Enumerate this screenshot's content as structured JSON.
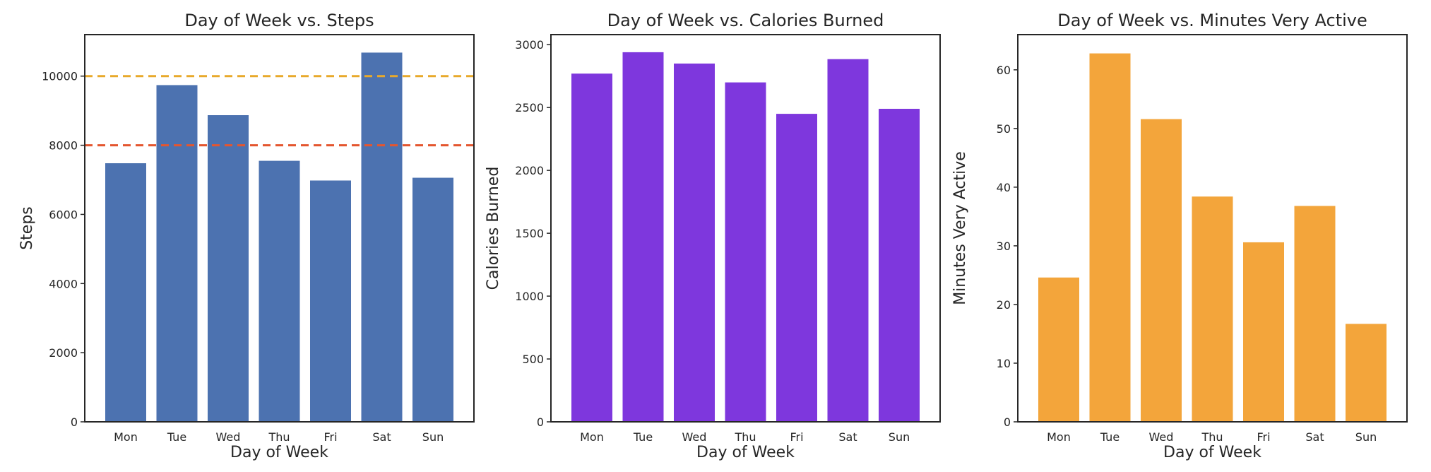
{
  "chart_data": [
    {
      "type": "bar",
      "title": "Day of Week vs. Steps",
      "xlabel": "Day of Week",
      "ylabel": "Steps",
      "categories": [
        "Mon",
        "Tue",
        "Wed",
        "Thu",
        "Fri",
        "Sat",
        "Sun"
      ],
      "values": [
        7480,
        9740,
        8870,
        7550,
        6980,
        10680,
        7060
      ],
      "ylim": [
        0,
        11200
      ],
      "yticks": [
        0,
        2000,
        4000,
        6000,
        8000,
        10000
      ],
      "color": "#4c72b0",
      "reference_lines": [
        {
          "y": 10000,
          "color": "#e8a92b",
          "style": "dashed"
        },
        {
          "y": 8000,
          "color": "#e4562f",
          "style": "dashed"
        }
      ],
      "grid": false
    },
    {
      "type": "bar",
      "title": "Day of Week vs. Calories Burned",
      "xlabel": "Day of Week",
      "ylabel": "Calories Burned",
      "categories": [
        "Mon",
        "Tue",
        "Wed",
        "Thu",
        "Fri",
        "Sat",
        "Sun"
      ],
      "values": [
        2770,
        2940,
        2850,
        2700,
        2450,
        2885,
        2490
      ],
      "ylim": [
        0,
        3080
      ],
      "yticks": [
        0,
        500,
        1000,
        1500,
        2000,
        2500,
        3000
      ],
      "color": "#7e37dd",
      "reference_lines": [],
      "grid": false
    },
    {
      "type": "bar",
      "title": "Day of Week vs. Minutes Very Active",
      "xlabel": "Day of Week",
      "ylabel": "Minutes Very Active",
      "categories": [
        "Mon",
        "Tue",
        "Wed",
        "Thu",
        "Fri",
        "Sat",
        "Sun"
      ],
      "values": [
        24.6,
        62.8,
        51.6,
        38.4,
        30.6,
        36.8,
        16.7
      ],
      "ylim": [
        0,
        66
      ],
      "yticks": [
        0,
        10,
        20,
        30,
        40,
        50,
        60
      ],
      "color": "#f3a53b",
      "reference_lines": [],
      "grid": false
    }
  ]
}
